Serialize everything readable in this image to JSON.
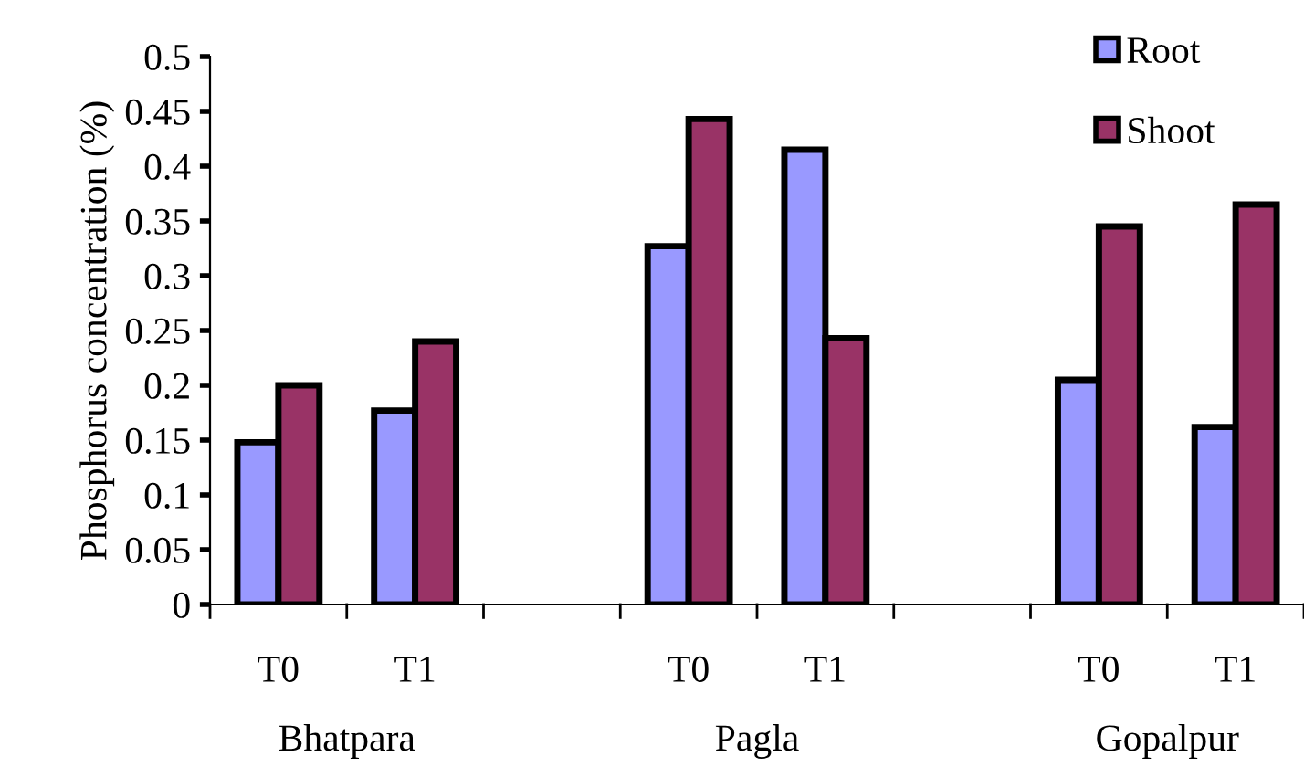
{
  "chart_data": {
    "type": "bar",
    "ylabel": "Phosphorus concentration (%)",
    "categories": [
      "T0",
      "T1",
      null,
      "T0",
      "T1",
      null,
      "T0",
      "T1"
    ],
    "series": [
      {
        "name": "Root",
        "color": "#9999ff",
        "values": [
          0.148,
          0.177,
          null,
          0.327,
          0.415,
          null,
          0.205,
          0.162
        ]
      },
      {
        "name": "Shoot",
        "color": "#993366",
        "values": [
          0.2,
          0.24,
          null,
          0.443,
          0.243,
          null,
          0.345,
          0.365
        ]
      }
    ],
    "annotations": [
      "Bhatpara",
      "Pagla",
      "Gopalpur"
    ],
    "ylim": [
      0,
      0.5
    ],
    "yticks": [
      0,
      0.05,
      0.1,
      0.15,
      0.2,
      0.25,
      0.3,
      0.35,
      0.4,
      0.45,
      0.5
    ],
    "grid": false,
    "legend": "top right"
  }
}
